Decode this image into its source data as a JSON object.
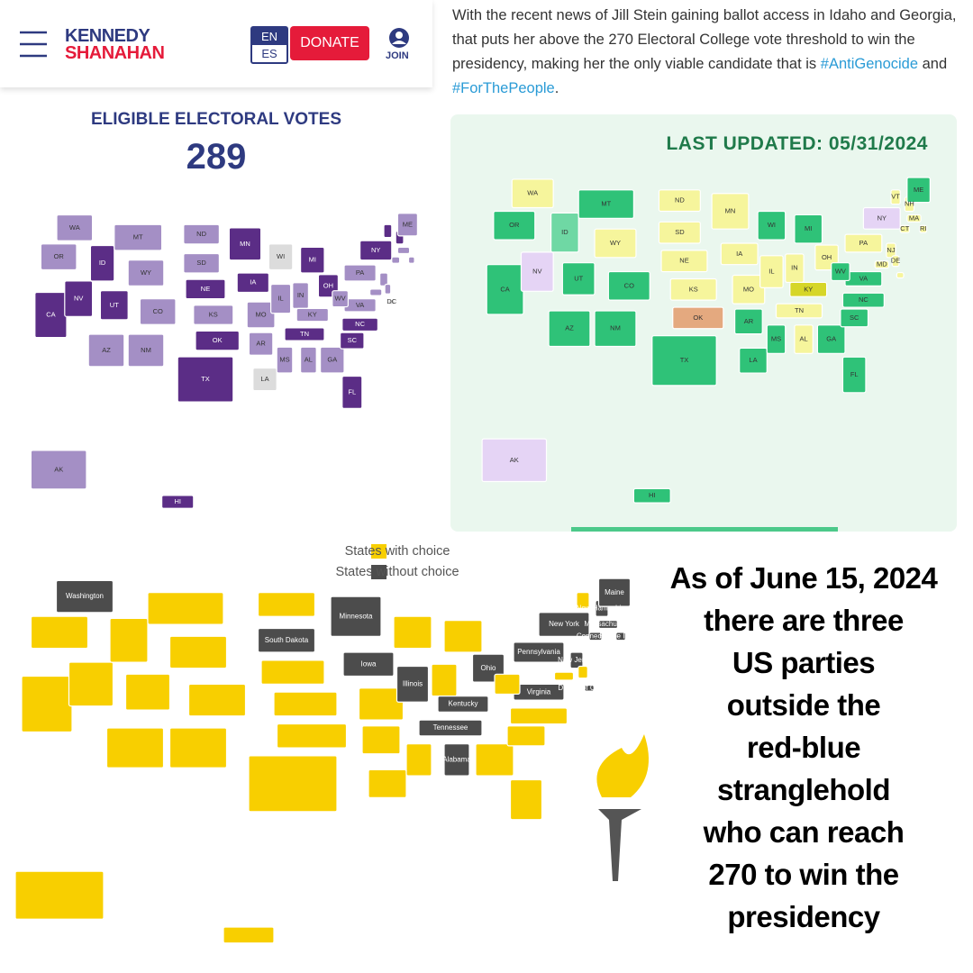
{
  "header": {
    "logo_top": "KENNEDY",
    "logo_bottom": "SHANAHAN",
    "lang_top": "EN",
    "lang_bottom": "ES",
    "donate": "DONATE",
    "join": "JOIN"
  },
  "votes": {
    "title": "ELIGIBLE ELECTORAL VOTES",
    "number": "289"
  },
  "tweet": [
    "With the recent news of Jill Stein gaining ballot access in Idaho and Georgia, that puts her above the 270 Electoral College vote threshold to win the presidency, making her the only viable candidate that is",
    "#AntiGenocide",
    "and",
    "#ForThePeople",
    "."
  ],
  "updated": "LAST UPDATED: 05/31/2024",
  "legend": [
    {
      "label": "States with choice",
      "color": "#f8cf00"
    },
    {
      "label": "States without choice",
      "color": "#4c4c4c"
    }
  ],
  "headline": [
    "As of June 15, 2024",
    "there are three",
    "US parties",
    "outside the",
    "red-blue",
    "stranglehold",
    "who can reach",
    "270 to win the",
    "presidency"
  ],
  "maps": [
    {
      "colors": [
        "#5b2d86",
        "#a48fc5",
        "#dcdcdc"
      ],
      "states": [
        {
          "label": "WA",
          "category": 1
        },
        {
          "label": "OR",
          "category": 1
        },
        {
          "label": "CA",
          "category": 0
        },
        {
          "label": "NV",
          "category": 0
        },
        {
          "label": "ID",
          "category": 0
        },
        {
          "label": "MT",
          "category": 1
        },
        {
          "label": "WY",
          "category": 1
        },
        {
          "label": "UT",
          "category": 0
        },
        {
          "label": "AZ",
          "category": 1
        },
        {
          "label": "NM",
          "category": 1
        },
        {
          "label": "CO",
          "category": 1
        },
        {
          "label": "ND",
          "category": 1
        },
        {
          "label": "SD",
          "category": 1
        },
        {
          "label": "NE",
          "category": 0
        },
        {
          "label": "KS",
          "category": 1
        },
        {
          "label": "OK",
          "category": 0
        },
        {
          "label": "TX",
          "category": 0
        },
        {
          "label": "MN",
          "category": 0
        },
        {
          "label": "IA",
          "category": 0
        },
        {
          "label": "MO",
          "category": 1
        },
        {
          "label": "AR",
          "category": 1
        },
        {
          "label": "LA",
          "category": 2
        },
        {
          "label": "WI",
          "category": 2
        },
        {
          "label": "IL",
          "category": 1
        },
        {
          "label": "MI",
          "category": 0
        },
        {
          "label": "IN",
          "category": 1
        },
        {
          "label": "OH",
          "category": 0
        },
        {
          "label": "KY",
          "category": 1
        },
        {
          "label": "TN",
          "category": 0
        },
        {
          "label": "MS",
          "category": 1
        },
        {
          "label": "AL",
          "category": 1
        },
        {
          "label": "GA",
          "category": 1
        },
        {
          "label": "FL",
          "category": 0
        },
        {
          "label": "SC",
          "category": 0
        },
        {
          "label": "NC",
          "category": 0
        },
        {
          "label": "VA",
          "category": 1
        },
        {
          "label": "WV",
          "category": 1
        },
        {
          "label": "PA",
          "category": 1
        },
        {
          "label": "NY",
          "category": 0
        },
        {
          "label": null,
          "category": 0
        },
        {
          "label": null,
          "category": 0
        },
        {
          "label": null,
          "category": 1
        },
        {
          "label": null,
          "category": 1
        },
        {
          "label": null,
          "category": 1
        },
        {
          "label": null,
          "category": 1
        },
        {
          "label": null,
          "category": 1
        },
        {
          "label": null,
          "category": 1
        },
        {
          "label": "DC",
          "category": 2
        },
        {
          "label": "ME",
          "category": 1
        },
        {
          "label": "AK",
          "category": 1
        },
        {
          "label": "HI",
          "category": 0
        }
      ]
    },
    {
      "colors": [
        "#2fc278",
        "#f6f59c",
        "#e5d4f5",
        "#e4a97f",
        "#6fd8a4",
        "#d6d628"
      ],
      "states": [
        {
          "label": "WA",
          "category": 1
        },
        {
          "label": "OR",
          "category": 0
        },
        {
          "label": "CA",
          "category": 0
        },
        {
          "label": "NV",
          "category": 2
        },
        {
          "label": "ID",
          "category": 4
        },
        {
          "label": "MT",
          "category": 0
        },
        {
          "label": "WY",
          "category": 1
        },
        {
          "label": "UT",
          "category": 0
        },
        {
          "label": "AZ",
          "category": 0
        },
        {
          "label": "NM",
          "category": 0
        },
        {
          "label": "CO",
          "category": 0
        },
        {
          "label": "ND",
          "category": 1
        },
        {
          "label": "SD",
          "category": 1
        },
        {
          "label": "NE",
          "category": 1
        },
        {
          "label": "KS",
          "category": 1
        },
        {
          "label": "OK",
          "category": 3
        },
        {
          "label": "TX",
          "category": 0
        },
        {
          "label": "MN",
          "category": 1
        },
        {
          "label": "IA",
          "category": 1
        },
        {
          "label": "MO",
          "category": 1
        },
        {
          "label": "AR",
          "category": 0
        },
        {
          "label": "LA",
          "category": 0
        },
        {
          "label": "WI",
          "category": 0
        },
        {
          "label": "IL",
          "category": 1
        },
        {
          "label": "MI",
          "category": 0
        },
        {
          "label": "IN",
          "category": 1
        },
        {
          "label": "OH",
          "category": 1
        },
        {
          "label": "KY",
          "category": 5
        },
        {
          "label": "TN",
          "category": 1
        },
        {
          "label": "MS",
          "category": 0
        },
        {
          "label": "AL",
          "category": 1
        },
        {
          "label": "GA",
          "category": 0
        },
        {
          "label": "FL",
          "category": 0
        },
        {
          "label": "SC",
          "category": 0
        },
        {
          "label": "NC",
          "category": 0
        },
        {
          "label": "VA",
          "category": 0
        },
        {
          "label": "WV",
          "category": 0
        },
        {
          "label": "PA",
          "category": 1
        },
        {
          "label": "NY",
          "category": 2
        },
        {
          "label": "VT",
          "category": 1
        },
        {
          "label": "NH",
          "category": 1
        },
        {
          "label": "MA",
          "category": 1
        },
        {
          "label": "CT",
          "category": 1
        },
        {
          "label": "RI",
          "category": 1
        },
        {
          "label": "NJ",
          "category": 1
        },
        {
          "label": "DE",
          "category": 1
        },
        {
          "label": "MD",
          "category": 1
        },
        {
          "label": null,
          "category": 1
        },
        {
          "label": "ME",
          "category": 0
        },
        {
          "label": "AK",
          "category": 2
        },
        {
          "label": "HI",
          "category": 0
        }
      ]
    },
    {
      "colors": [
        "#f8cf00",
        "#4c4c4c"
      ],
      "states": [
        {
          "label": "Washington",
          "category": 1
        },
        {
          "label": null,
          "category": 0
        },
        {
          "label": null,
          "category": 0
        },
        {
          "label": null,
          "category": 0
        },
        {
          "label": null,
          "category": 0
        },
        {
          "label": null,
          "category": 0
        },
        {
          "label": null,
          "category": 0
        },
        {
          "label": null,
          "category": 0
        },
        {
          "label": null,
          "category": 0
        },
        {
          "label": null,
          "category": 0
        },
        {
          "label": null,
          "category": 0
        },
        {
          "label": null,
          "category": 0
        },
        {
          "label": "South Dakota",
          "category": 1
        },
        {
          "label": null,
          "category": 0
        },
        {
          "label": null,
          "category": 0
        },
        {
          "label": null,
          "category": 0
        },
        {
          "label": null,
          "category": 0
        },
        {
          "label": "Minnesota",
          "category": 1
        },
        {
          "label": "Iowa",
          "category": 1
        },
        {
          "label": null,
          "category": 0
        },
        {
          "label": null,
          "category": 0
        },
        {
          "label": null,
          "category": 0
        },
        {
          "label": null,
          "category": 0
        },
        {
          "label": "Illinois",
          "category": 1
        },
        {
          "label": null,
          "category": 0
        },
        {
          "label": null,
          "category": 0
        },
        {
          "label": "Ohio",
          "category": 1
        },
        {
          "label": "Kentucky",
          "category": 1
        },
        {
          "label": "Tennessee",
          "category": 1
        },
        {
          "label": null,
          "category": 0
        },
        {
          "label": "Alabama",
          "category": 1
        },
        {
          "label": null,
          "category": 0
        },
        {
          "label": null,
          "category": 0
        },
        {
          "label": null,
          "category": 0
        },
        {
          "label": null,
          "category": 0
        },
        {
          "label": "Virginia",
          "category": 1
        },
        {
          "label": null,
          "category": 0
        },
        {
          "label": "Pennsylvania",
          "category": 1
        },
        {
          "label": "New York",
          "category": 1
        },
        {
          "label": null,
          "category": 0
        },
        {
          "label": "New Hampshire",
          "category": 1
        },
        {
          "label": "Massachusetts",
          "category": 1
        },
        {
          "label": "Connecticut",
          "category": 1
        },
        {
          "label": "Rhode Island",
          "category": 1
        },
        {
          "label": "New Jersey",
          "category": 1
        },
        {
          "label": null,
          "category": 0
        },
        {
          "label": null,
          "category": 0
        },
        {
          "label": "District of Columbia",
          "category": 1
        },
        {
          "label": "Maine",
          "category": 1
        },
        {
          "label": null,
          "category": 0
        },
        {
          "label": null,
          "category": 0
        }
      ]
    }
  ]
}
